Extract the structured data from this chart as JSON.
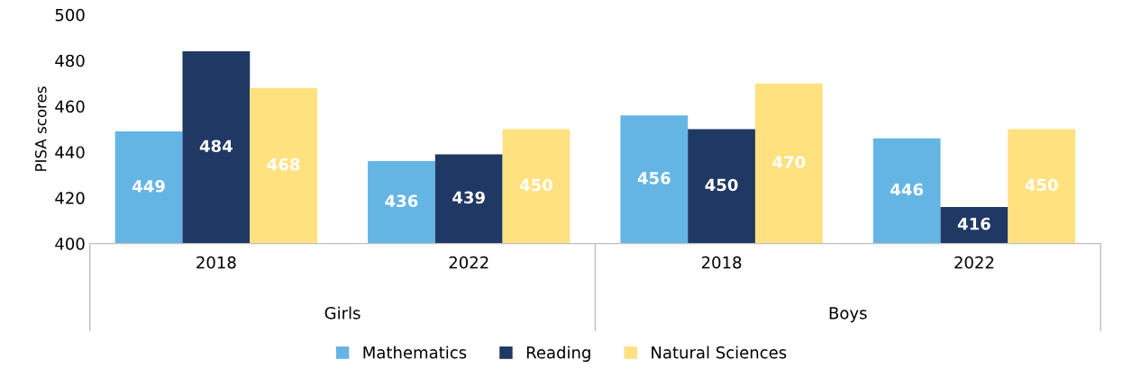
{
  "chart_data": {
    "type": "bar",
    "ylabel": "PISA scores",
    "categories": [
      "2018",
      "2022",
      "2018",
      "2022"
    ],
    "series": [
      {
        "name": "Mathematics",
        "color": "#65b5e4",
        "values": [
          449,
          436,
          456,
          446
        ]
      },
      {
        "name": "Reading",
        "color": "#203864",
        "values": [
          484,
          439,
          450,
          416
        ]
      },
      {
        "name": "Natural Sciences",
        "color": "#ffe17f",
        "values": [
          468,
          450,
          470,
          450
        ]
      }
    ],
    "annotations": [
      "Girls",
      "Boys"
    ],
    "ylim": [
      400,
      500
    ],
    "yticks": [
      400,
      420,
      440,
      460,
      480,
      500
    ],
    "data_labels": true,
    "grid": false,
    "legend": "bottom"
  }
}
